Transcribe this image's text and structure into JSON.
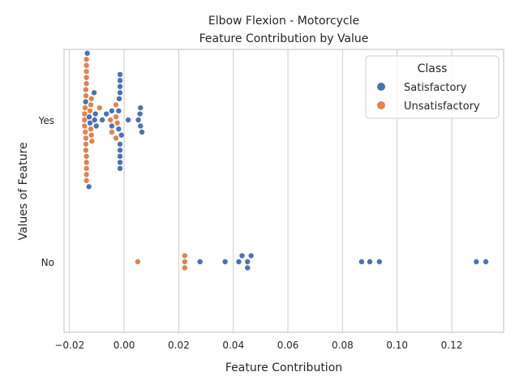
{
  "chart_data": {
    "type": "scatter",
    "title": "Elbow Flexion - Motorcycle",
    "subtitle": "Feature Contribution by Value",
    "xlabel": "Feature Contribution",
    "ylabel": "Values of Feature",
    "categories": [
      "Yes",
      "No"
    ],
    "xlim": [
      -0.022,
      0.139
    ],
    "xticks": [
      -0.02,
      0.0,
      0.02,
      0.04,
      0.06,
      0.08,
      0.1,
      0.12
    ],
    "xtick_labels": [
      "−0.02",
      "0.00",
      "0.02",
      "0.04",
      "0.06",
      "0.08",
      "0.10",
      "0.12"
    ],
    "grid": "vertical",
    "legend": {
      "title": "Class",
      "placement": "top-right"
    },
    "series": [
      {
        "name": "Satisfactory",
        "color": "#4c72b0",
        "points": [
          {
            "x": -0.0135,
            "y": "Yes"
          },
          {
            "x": -0.0128,
            "y": "Yes"
          },
          {
            "x": -0.0141,
            "y": "Yes"
          },
          {
            "x": -0.0129,
            "y": "Yes"
          },
          {
            "x": -0.0125,
            "y": "Yes"
          },
          {
            "x": -0.0105,
            "y": "Yes"
          },
          {
            "x": -0.0108,
            "y": "Yes"
          },
          {
            "x": -0.0102,
            "y": "Yes"
          },
          {
            "x": -0.011,
            "y": "Yes"
          },
          {
            "x": -0.008,
            "y": "Yes"
          },
          {
            "x": -0.0065,
            "y": "Yes"
          },
          {
            "x": -0.0045,
            "y": "Yes"
          },
          {
            "x": -0.0045,
            "y": "Yes"
          },
          {
            "x": -0.001,
            "y": "Yes"
          },
          {
            "x": -0.0015,
            "y": "Yes"
          },
          {
            "x": -0.0015,
            "y": "Yes"
          },
          {
            "x": -0.0018,
            "y": "Yes"
          },
          {
            "x": -0.0015,
            "y": "Yes"
          },
          {
            "x": -0.002,
            "y": "Yes"
          },
          {
            "x": -0.0015,
            "y": "Yes"
          },
          {
            "x": -0.0015,
            "y": "Yes"
          },
          {
            "x": -0.002,
            "y": "Yes"
          },
          {
            "x": -0.0015,
            "y": "Yes"
          },
          {
            "x": -0.0015,
            "y": "Yes"
          },
          {
            "x": -0.0015,
            "y": "Yes"
          },
          {
            "x": -0.0015,
            "y": "Yes"
          },
          {
            "x": 0.0015,
            "y": "Yes"
          },
          {
            "x": 0.0065,
            "y": "Yes"
          },
          {
            "x": 0.0058,
            "y": "Yes"
          },
          {
            "x": 0.0052,
            "y": "Yes"
          },
          {
            "x": 0.006,
            "y": "Yes"
          },
          {
            "x": 0.006,
            "y": "Yes"
          },
          {
            "x": 0.0278,
            "y": "No"
          },
          {
            "x": 0.037,
            "y": "No"
          },
          {
            "x": 0.042,
            "y": "No"
          },
          {
            "x": 0.0432,
            "y": "No"
          },
          {
            "x": 0.0452,
            "y": "No"
          },
          {
            "x": 0.0452,
            "y": "No"
          },
          {
            "x": 0.0465,
            "y": "No"
          },
          {
            "x": 0.087,
            "y": "No"
          },
          {
            "x": 0.09,
            "y": "No"
          },
          {
            "x": 0.0935,
            "y": "No"
          },
          {
            "x": 0.129,
            "y": "No"
          },
          {
            "x": 0.1325,
            "y": "No"
          }
        ]
      },
      {
        "name": "Unsatisfactory",
        "color": "#dd8452",
        "points": [
          {
            "x": -0.0138,
            "y": "Yes"
          },
          {
            "x": -0.0138,
            "y": "Yes"
          },
          {
            "x": -0.0138,
            "y": "Yes"
          },
          {
            "x": -0.014,
            "y": "Yes"
          },
          {
            "x": -0.0138,
            "y": "Yes"
          },
          {
            "x": -0.014,
            "y": "Yes"
          },
          {
            "x": -0.0138,
            "y": "Yes"
          },
          {
            "x": -0.0145,
            "y": "Yes"
          },
          {
            "x": -0.0142,
            "y": "Yes"
          },
          {
            "x": -0.0145,
            "y": "Yes"
          },
          {
            "x": -0.0145,
            "y": "Yes"
          },
          {
            "x": -0.0143,
            "y": "Yes"
          },
          {
            "x": -0.0138,
            "y": "Yes"
          },
          {
            "x": -0.0138,
            "y": "Yes"
          },
          {
            "x": -0.0138,
            "y": "Yes"
          },
          {
            "x": -0.0138,
            "y": "Yes"
          },
          {
            "x": -0.0138,
            "y": "Yes"
          },
          {
            "x": -0.014,
            "y": "Yes"
          },
          {
            "x": -0.014,
            "y": "Yes"
          },
          {
            "x": -0.014,
            "y": "Yes"
          },
          {
            "x": -0.0118,
            "y": "Yes"
          },
          {
            "x": -0.0122,
            "y": "Yes"
          },
          {
            "x": -0.0125,
            "y": "Yes"
          },
          {
            "x": -0.0122,
            "y": "Yes"
          },
          {
            "x": -0.012,
            "y": "Yes"
          },
          {
            "x": -0.012,
            "y": "Yes"
          },
          {
            "x": -0.009,
            "y": "Yes"
          },
          {
            "x": -0.0045,
            "y": "Yes"
          },
          {
            "x": -0.005,
            "y": "Yes"
          },
          {
            "x": -0.003,
            "y": "Yes"
          },
          {
            "x": -0.0025,
            "y": "Yes"
          },
          {
            "x": -0.003,
            "y": "Yes"
          },
          {
            "x": -0.003,
            "y": "Yes"
          },
          {
            "x": 0.005,
            "y": "No"
          },
          {
            "x": 0.0222,
            "y": "No"
          },
          {
            "x": 0.0222,
            "y": "No"
          },
          {
            "x": 0.0222,
            "y": "No"
          }
        ]
      }
    ]
  }
}
